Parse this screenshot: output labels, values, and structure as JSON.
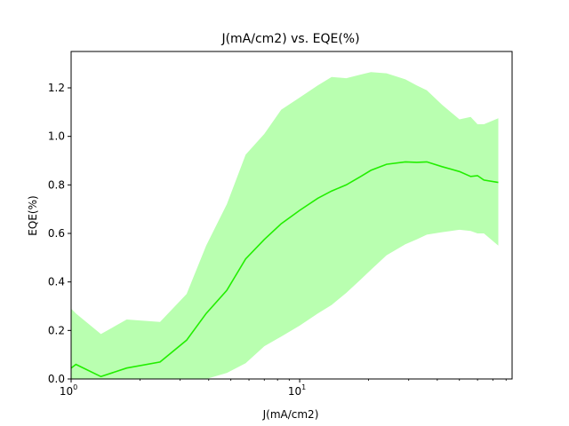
{
  "chart_data": {
    "type": "area",
    "title": "J(mA/cm2) vs. EQE(%)",
    "xlabel": "J(mA/cm2)",
    "ylabel": "EQE(%)",
    "xscale": "log",
    "xlim": [
      1,
      85
    ],
    "ylim": [
      0,
      1.35
    ],
    "grid": false,
    "xticks": [
      {
        "value": 1,
        "base": "10",
        "exp": "0"
      },
      {
        "value": 10,
        "base": "10",
        "exp": "1"
      }
    ],
    "yticks": [
      "0.0",
      "0.2",
      "0.4",
      "0.6",
      "0.8",
      "1.0",
      "1.2"
    ],
    "colors": {
      "line": "#22ee00",
      "band": "#b9ffb0"
    },
    "x": [
      1.0,
      1.05,
      1.35,
      1.75,
      2.45,
      3.2,
      3.9,
      4.8,
      5.8,
      7.0,
      8.3,
      10.0,
      12.0,
      13.8,
      16.0,
      18.5,
      20.5,
      24.0,
      29.0,
      32.5,
      36.0,
      42.0,
      50.0,
      56.0,
      60.0,
      64.0,
      74.0
    ],
    "series": [
      {
        "role": "mean",
        "values": [
          0.045,
          0.06,
          0.01,
          0.045,
          0.07,
          0.16,
          0.27,
          0.365,
          0.495,
          0.575,
          0.64,
          0.695,
          0.745,
          0.775,
          0.8,
          0.835,
          0.86,
          0.885,
          0.895,
          0.893,
          0.895,
          0.875,
          0.855,
          0.835,
          0.838,
          0.82,
          0.81
        ]
      },
      {
        "role": "upper",
        "values": [
          0.29,
          0.27,
          0.185,
          0.245,
          0.235,
          0.35,
          0.55,
          0.72,
          0.925,
          1.01,
          1.11,
          1.16,
          1.21,
          1.245,
          1.24,
          1.255,
          1.265,
          1.26,
          1.235,
          1.21,
          1.19,
          1.13,
          1.07,
          1.08,
          1.05,
          1.05,
          1.075
        ]
      },
      {
        "role": "lower",
        "values": [
          0.0,
          0.0,
          0.0,
          0.0,
          0.0,
          0.0,
          0.0,
          0.025,
          0.065,
          0.135,
          0.175,
          0.22,
          0.27,
          0.305,
          0.355,
          0.41,
          0.45,
          0.51,
          0.555,
          0.575,
          0.595,
          0.605,
          0.615,
          0.61,
          0.6,
          0.6,
          0.55
        ]
      }
    ]
  }
}
